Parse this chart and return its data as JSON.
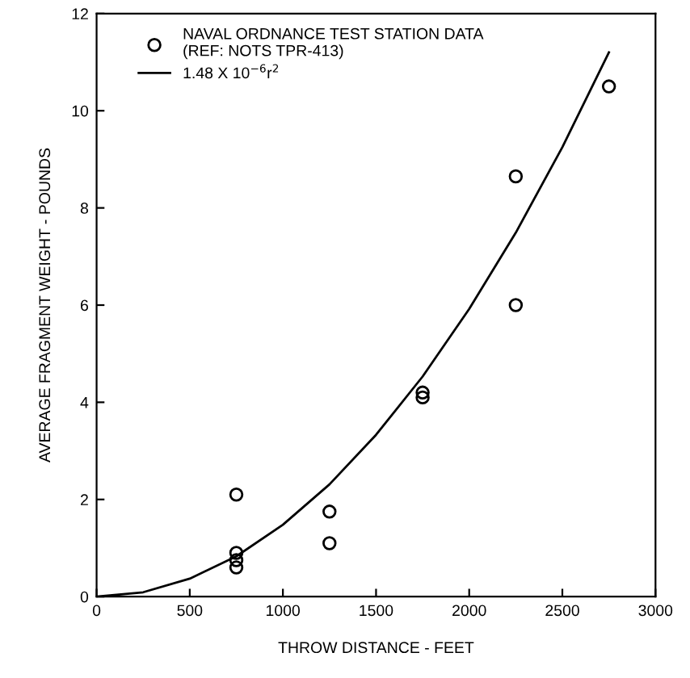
{
  "chart_data": {
    "type": "scatter",
    "xlabel": "THROW DISTANCE - FEET",
    "ylabel": "AVERAGE FRAGMENT WEIGHT - POUNDS",
    "xlim": [
      0,
      3000
    ],
    "xticks": [
      0,
      500,
      1000,
      1500,
      2000,
      2500,
      3000
    ],
    "ylim": [
      0,
      12
    ],
    "yticks": [
      0,
      2,
      4,
      6,
      8,
      10,
      12
    ],
    "grid": false,
    "legend": "top left",
    "series": [
      {
        "name": "NAVAL ORDNANCE TEST STATION DATA\n(REF: NOTS TPR-413)",
        "marker": "circle",
        "color": "#000000",
        "x": [
          750,
          750,
          750,
          750,
          1250,
          1250,
          1750,
          1750,
          2250,
          2250,
          2750
        ],
        "values": [
          2.1,
          0.9,
          0.75,
          0.6,
          1.75,
          1.1,
          4.2,
          4.1,
          8.65,
          6.0,
          10.5
        ]
      },
      {
        "name": "1.48 X 10$^{−6}$r$^{2}$",
        "type": "line",
        "marker": "none",
        "line_style": "solid",
        "color": "#000000",
        "x": [
          0,
          250,
          500,
          750,
          1000,
          1250,
          1500,
          1750,
          2000,
          2250,
          2500,
          2750
        ],
        "values": [
          0,
          0.09,
          0.37,
          0.83,
          1.48,
          2.31,
          3.33,
          4.53,
          5.92,
          7.49,
          9.25,
          11.2
        ]
      }
    ]
  }
}
